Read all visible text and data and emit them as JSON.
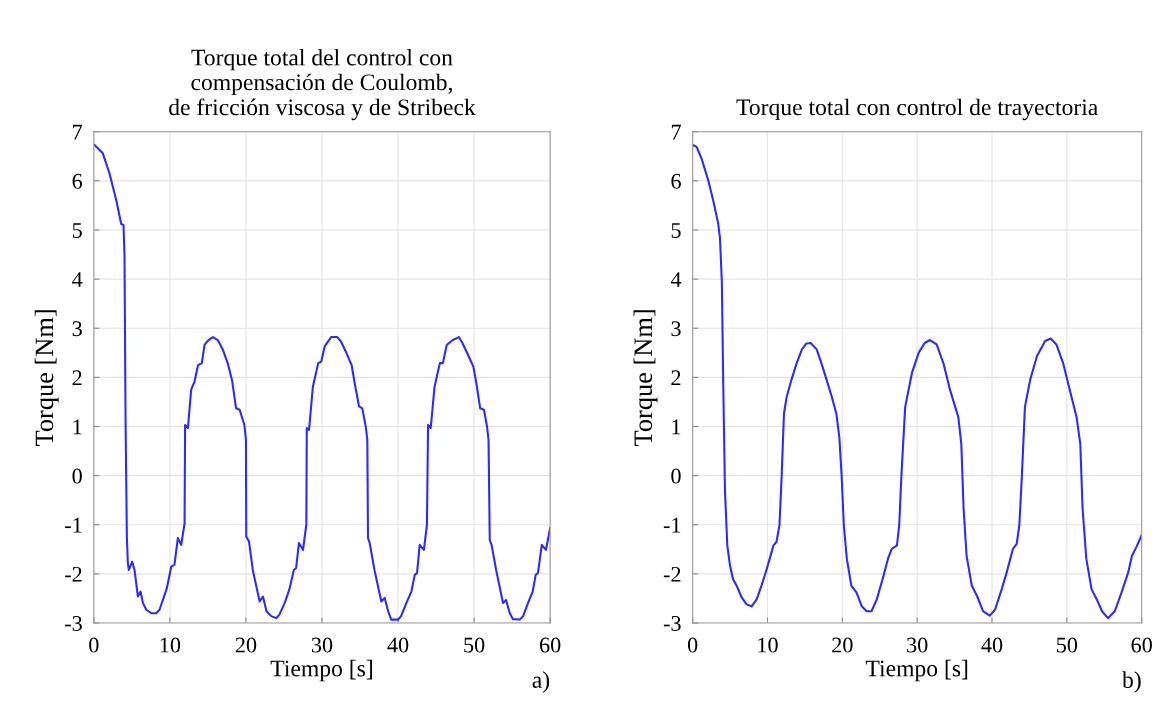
{
  "chart_data": [
    {
      "type": "line",
      "title": "Torque total del control con\ncompensación de Coulomb,\nde fricción viscosa y de Stribeck",
      "xlabel": "Tiempo [s]",
      "ylabel": "Torque [Nm]",
      "annotations": [
        "a)"
      ],
      "xlim": [
        0,
        60
      ],
      "ylim": [
        -3,
        7
      ],
      "xticks": [
        0,
        10,
        20,
        30,
        40,
        50,
        60
      ],
      "yticks": [
        -3,
        -2,
        -1,
        0,
        1,
        2,
        3,
        4,
        5,
        6,
        7
      ],
      "grid": true,
      "marker": "none",
      "line_style": "solid",
      "series": [
        {
          "color": "#2b2bff",
          "x": [
            0.09,
            1.18,
            2.06,
            2.94,
            3.6,
            3.9,
            4.03,
            4.17,
            4.34,
            4.47,
            4.6,
            5.04,
            5.35,
            5.79,
            6.14,
            6.45,
            6.89,
            7.54,
            8.2,
            8.64,
            9.08,
            9.6,
            10.18,
            10.6,
            11.05,
            11.49,
            11.93,
            12.0,
            12.37,
            12.8,
            13.25,
            13.7,
            14.2,
            14.56,
            15.0,
            15.66,
            16.3,
            16.97,
            17.6,
            18.2,
            18.7,
            19.17,
            19.8,
            20.0,
            20.04,
            20.4,
            20.9,
            21.8,
            22.24,
            22.7,
            23.33,
            24.0,
            24.4,
            25.1,
            25.7,
            26.3,
            26.6,
            26.97,
            27.5,
            27.94,
            28.0,
            28.3,
            28.8,
            29.5,
            29.9,
            30.35,
            31.2,
            32.0,
            32.5,
            33.2,
            33.9,
            34.3,
            34.87,
            35.3,
            35.75,
            35.96,
            36.05,
            36.27,
            36.9,
            37.8,
            38.25,
            38.7,
            39.1,
            40.0,
            40.4,
            41.1,
            41.75,
            42.2,
            42.5,
            42.85,
            43.4,
            43.8,
            43.95,
            44.3,
            44.8,
            45.5,
            45.9,
            46.4,
            47.2,
            48.0,
            48.5,
            49.2,
            49.9,
            50.3,
            50.8,
            51.3,
            51.7,
            51.9,
            52.06,
            52.3,
            52.9,
            53.8,
            54.2,
            54.7,
            55.1,
            56.0,
            56.45,
            57.1,
            57.7,
            58.1,
            58.4,
            58.9,
            59.45,
            60.0
          ],
          "values": [
            6.73,
            6.56,
            6.15,
            5.61,
            5.12,
            5.1,
            4.5,
            1.14,
            -1.24,
            -1.78,
            -1.92,
            -1.75,
            -1.92,
            -2.46,
            -2.36,
            -2.59,
            -2.73,
            -2.8,
            -2.8,
            -2.73,
            -2.53,
            -2.29,
            -1.85,
            -1.81,
            -1.27,
            -1.41,
            -0.97,
            1.03,
            0.97,
            1.75,
            1.92,
            2.25,
            2.29,
            2.66,
            2.75,
            2.82,
            2.76,
            2.56,
            2.29,
            1.92,
            1.37,
            1.34,
            1.03,
            0.73,
            -1.24,
            -1.34,
            -1.92,
            -2.56,
            -2.46,
            -2.76,
            -2.86,
            -2.9,
            -2.83,
            -2.59,
            -2.32,
            -1.92,
            -1.88,
            -1.37,
            -1.51,
            -1.0,
            0.97,
            0.93,
            1.81,
            2.29,
            2.32,
            2.63,
            2.82,
            2.82,
            2.73,
            2.5,
            2.25,
            1.88,
            1.41,
            1.37,
            1.0,
            0.73,
            -1.27,
            -1.37,
            -1.92,
            -2.56,
            -2.49,
            -2.76,
            -2.93,
            -2.93,
            -2.86,
            -2.59,
            -2.36,
            -2.02,
            -1.98,
            -1.41,
            -1.51,
            -1.0,
            1.03,
            0.97,
            1.81,
            2.29,
            2.29,
            2.66,
            2.76,
            2.82,
            2.69,
            2.46,
            2.22,
            1.88,
            1.37,
            1.34,
            1.0,
            0.73,
            -1.31,
            -1.41,
            -1.92,
            -2.59,
            -2.53,
            -2.8,
            -2.92,
            -2.93,
            -2.86,
            -2.59,
            -2.36,
            -2.02,
            -1.98,
            -1.41,
            -1.51,
            -1.07
          ]
        }
      ]
    },
    {
      "type": "line",
      "title": "Torque total con control de trayectoria",
      "xlabel": "Tiempo [s]",
      "ylabel": "Torque [Nm]",
      "annotations": [
        "b)"
      ],
      "xlim": [
        0,
        60
      ],
      "ylim": [
        -3,
        7
      ],
      "xticks": [
        0,
        10,
        20,
        30,
        40,
        50,
        60
      ],
      "yticks": [
        -3,
        -2,
        -1,
        0,
        1,
        2,
        3,
        4,
        5,
        6,
        7
      ],
      "grid": true,
      "marker": "none",
      "line_style": "solid",
      "series": [
        {
          "color": "#2b2bff",
          "x": [
            0,
            0.53,
            1.2,
            2.1,
            2.76,
            3.4,
            3.65,
            3.9,
            4.1,
            4.32,
            4.63,
            4.99,
            5.4,
            5.88,
            6.55,
            7.2,
            7.88,
            8.55,
            9.2,
            9.9,
            10.3,
            10.8,
            11.2,
            11.6,
            11.9,
            12.2,
            12.56,
            13.2,
            13.9,
            14.6,
            15.2,
            15.77,
            16.57,
            17.2,
            17.9,
            18.6,
            19.2,
            19.6,
            19.9,
            20.2,
            20.6,
            21.2,
            21.9,
            22.6,
            23.25,
            23.9,
            24.6,
            25.5,
            26.1,
            26.6,
            27.3,
            27.6,
            27.9,
            28.4,
            29.3,
            30.2,
            31.0,
            31.7,
            32.6,
            33.5,
            34.4,
            35.5,
            35.9,
            36.2,
            36.6,
            37.3,
            38.0,
            38.8,
            39.7,
            40.4,
            41.3,
            41.96,
            42.8,
            43.3,
            43.65,
            44.0,
            44.4,
            45.1,
            46.0,
            47.1,
            47.85,
            48.6,
            49.5,
            50.4,
            51.3,
            51.8,
            52.1,
            52.6,
            53.3,
            54.0,
            54.7,
            55.5,
            56.4,
            57.3,
            58.2,
            58.7,
            59.3,
            60.0
          ],
          "values": [
            6.73,
            6.69,
            6.45,
            6.0,
            5.59,
            5.14,
            4.84,
            3.94,
            1.74,
            -0.32,
            -1.42,
            -1.83,
            -2.11,
            -2.24,
            -2.48,
            -2.62,
            -2.66,
            -2.52,
            -2.24,
            -1.9,
            -1.69,
            -1.42,
            -1.35,
            -1.01,
            0.02,
            1.26,
            1.6,
            1.95,
            2.29,
            2.57,
            2.69,
            2.7,
            2.57,
            2.29,
            1.95,
            1.6,
            1.26,
            0.78,
            0.02,
            -1.01,
            -1.69,
            -2.24,
            -2.38,
            -2.66,
            -2.76,
            -2.76,
            -2.52,
            -2.04,
            -1.69,
            -1.49,
            -1.42,
            -1.01,
            0.02,
            1.4,
            2.09,
            2.5,
            2.7,
            2.76,
            2.67,
            2.29,
            1.74,
            1.19,
            0.64,
            -0.66,
            -1.63,
            -2.24,
            -2.45,
            -2.76,
            -2.85,
            -2.73,
            -2.31,
            -1.97,
            -1.49,
            -1.39,
            -1.01,
            0.02,
            1.4,
            1.95,
            2.43,
            2.74,
            2.79,
            2.67,
            2.29,
            1.74,
            1.19,
            0.64,
            -0.66,
            -1.69,
            -2.31,
            -2.52,
            -2.76,
            -2.9,
            -2.76,
            -2.38,
            -1.97,
            -1.63,
            -1.45,
            -1.21
          ]
        }
      ]
    }
  ]
}
